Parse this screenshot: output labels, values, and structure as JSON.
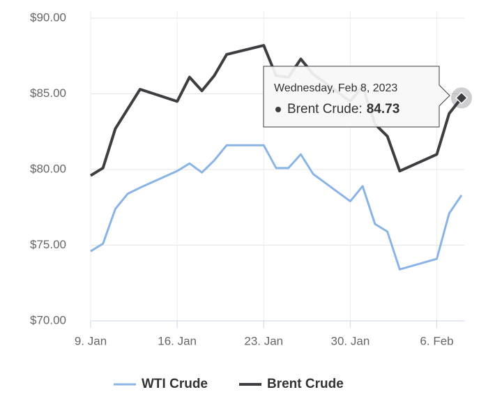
{
  "chart_data": {
    "type": "line",
    "x": [
      "2023-01-09",
      "2023-01-10",
      "2023-01-11",
      "2023-01-12",
      "2023-01-13",
      "2023-01-16",
      "2023-01-17",
      "2023-01-18",
      "2023-01-19",
      "2023-01-20",
      "2023-01-23",
      "2023-01-24",
      "2023-01-25",
      "2023-01-26",
      "2023-01-27",
      "2023-01-30",
      "2023-01-31",
      "2023-02-01",
      "2023-02-02",
      "2023-02-03",
      "2023-02-06",
      "2023-02-07",
      "2023-02-08"
    ],
    "series": [
      {
        "name": "WTI Crude",
        "color": "#8ab4e5",
        "values": [
          74.6,
          75.1,
          77.4,
          78.4,
          78.8,
          79.9,
          80.4,
          79.8,
          80.6,
          81.6,
          81.6,
          80.1,
          80.1,
          81.0,
          79.7,
          77.9,
          78.9,
          76.4,
          75.9,
          73.4,
          74.1,
          77.1,
          78.3
        ]
      },
      {
        "name": "Brent Crude",
        "color": "#3d3d42",
        "values": [
          79.6,
          80.1,
          82.7,
          84.0,
          85.3,
          84.5,
          86.1,
          85.2,
          86.2,
          87.6,
          88.2,
          86.2,
          86.1,
          87.3,
          86.3,
          84.5,
          85.5,
          83.0,
          82.2,
          79.9,
          81.0,
          83.7,
          84.73
        ]
      }
    ],
    "xlim": [
      "2023-01-09",
      "2023-02-08"
    ],
    "xticks": [
      {
        "value": "2023-01-09",
        "label": "9. Jan"
      },
      {
        "value": "2023-01-16",
        "label": "16. Jan"
      },
      {
        "value": "2023-01-23",
        "label": "23. Jan"
      },
      {
        "value": "2023-01-30",
        "label": "30. Jan"
      },
      {
        "value": "2023-02-06",
        "label": "6. Feb"
      }
    ],
    "ylim": [
      70,
      90
    ],
    "yticks": [
      {
        "value": 70,
        "label": "$70.00"
      },
      {
        "value": 75,
        "label": "$75.00"
      },
      {
        "value": 80,
        "label": "$80.00"
      },
      {
        "value": 85,
        "label": "$85.00"
      },
      {
        "value": 90,
        "label": "$90.00"
      }
    ],
    "grid": true,
    "legend": "bottom",
    "tooltip": {
      "header": "Wednesday, Feb 8, 2023",
      "series": 1,
      "index": 22,
      "separator": ":"
    }
  }
}
